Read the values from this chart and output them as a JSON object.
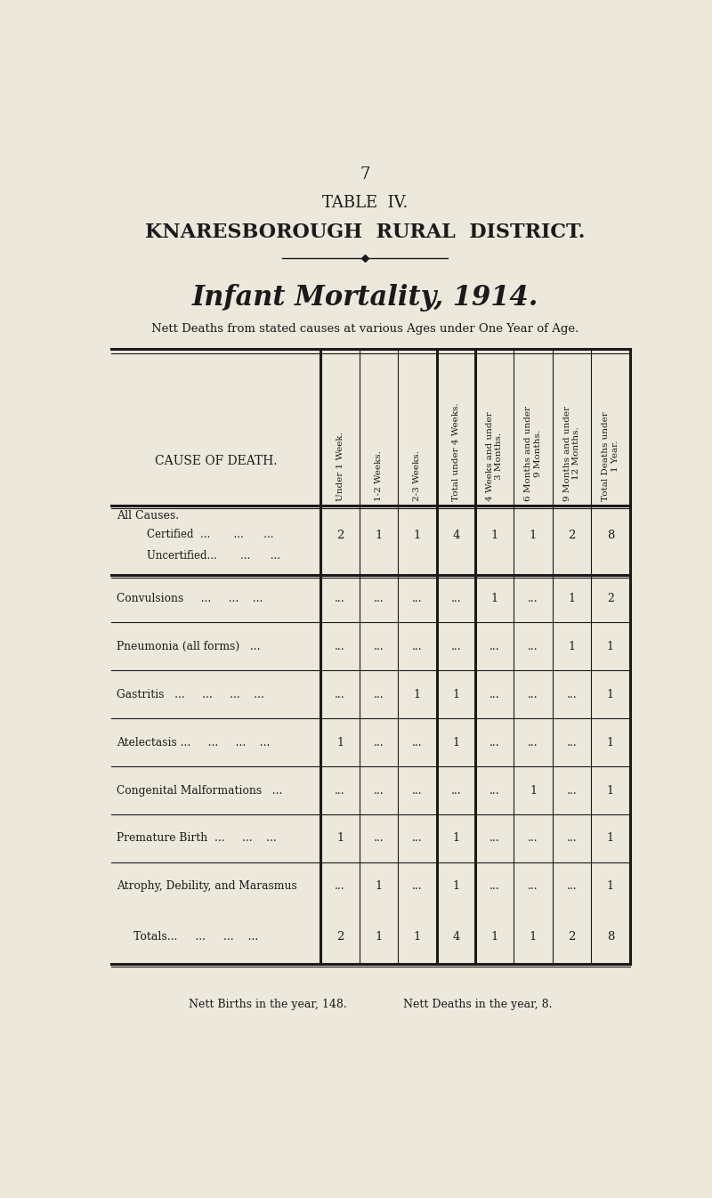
{
  "page_number": "7",
  "table_label": "TABLE  IV.",
  "district": "KNARESBOROUGH  RURAL  DISTRICT.",
  "subtitle": "Infant Mortality, 1914.",
  "subtitle2": "Nett Deaths from stated causes at various Ages under One Year of Age.",
  "bg_color": "#EDE8DC",
  "col_headers": [
    "Under 1 Week.",
    "1-2 Weeks.",
    "2-3 Weeks.",
    "Total under 4 Weeks.",
    "4 Weeks and under\n3 Months.",
    "6 Months and under\n9 Months.",
    "9 Months and under\n12 Months.",
    "Total Deaths under\n1 Year."
  ],
  "row_header_label": "CAUSE OF DEATH.",
  "rows": [
    {
      "label": "All Causes.",
      "sublabel": "    Certified  ...       ...      ...",
      "sublabel2": "    Uncertified...       ...      ...",
      "values": [
        "2",
        "1",
        "1",
        "4",
        "1",
        "1",
        "2",
        "8"
      ],
      "is_section_header": true
    },
    {
      "label": "Convulsions     ...     ...    ...",
      "values": [
        "...",
        "...",
        "...",
        "...",
        "1",
        "...",
        "1",
        "2"
      ]
    },
    {
      "label": "Pneumonia (all forms)   ...",
      "values": [
        "...",
        "...",
        "...",
        "...",
        "...",
        "...",
        "1",
        "1"
      ]
    },
    {
      "label": "Gastritis   ...     ...     ...    ...",
      "values": [
        "...",
        "...",
        "1",
        "1",
        "...",
        "...",
        "...",
        "1"
      ]
    },
    {
      "label": "Atelectasis ...     ...     ...    ...",
      "values": [
        "1",
        "...",
        "...",
        "1",
        "...",
        "...",
        "...",
        "1"
      ]
    },
    {
      "label": "Congenital Malformations   ...",
      "values": [
        "...",
        "...",
        "...",
        "...",
        "...",
        "1",
        "...",
        "1"
      ]
    },
    {
      "label": "Premature Birth  ...     ...    ...",
      "values": [
        "1",
        "...",
        "...",
        "1",
        "...",
        "...",
        "...",
        "1"
      ]
    },
    {
      "label": "Atrophy, Debility, and Marasmus",
      "values": [
        "...",
        "1",
        "...",
        "1",
        "...",
        "...",
        "...",
        "1"
      ]
    }
  ],
  "totals_label": "Totals...     ...     ...    ...",
  "totals_values": [
    "2",
    "1",
    "1",
    "4",
    "1",
    "1",
    "2",
    "8"
  ],
  "footer_left": "Nett Births in the year, 148.",
  "footer_right": "Nett Deaths in the year, 8."
}
